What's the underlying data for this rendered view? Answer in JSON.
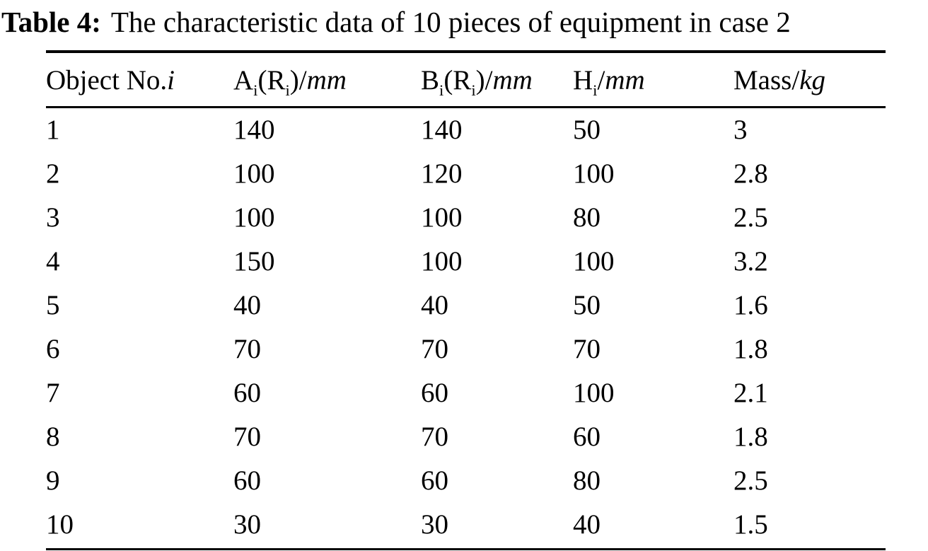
{
  "caption": {
    "label": "Table 4:",
    "text": "The characteristic data of 10 pieces of equipment in case 2"
  },
  "table": {
    "headers": [
      {
        "name": "object-no",
        "segments": [
          {
            "t": "Object No."
          },
          {
            "t": "i",
            "style": "italic"
          }
        ]
      },
      {
        "name": "a-dimension",
        "segments": [
          {
            "t": "A"
          },
          {
            "t": "i",
            "style": "sub"
          },
          {
            "t": "(R"
          },
          {
            "t": "i",
            "style": "sub"
          },
          {
            "t": ")/"
          },
          {
            "t": "mm",
            "style": "italic"
          }
        ]
      },
      {
        "name": "b-dimension",
        "segments": [
          {
            "t": "B"
          },
          {
            "t": "i",
            "style": "sub"
          },
          {
            "t": "(R"
          },
          {
            "t": "i",
            "style": "sub"
          },
          {
            "t": ")/"
          },
          {
            "t": "mm",
            "style": "italic"
          }
        ]
      },
      {
        "name": "height",
        "segments": [
          {
            "t": "H"
          },
          {
            "t": "i",
            "style": "sub"
          },
          {
            "t": "/"
          },
          {
            "t": "mm",
            "style": "italic"
          }
        ]
      },
      {
        "name": "mass",
        "segments": [
          {
            "t": "Mass/"
          },
          {
            "t": "kg",
            "style": "italic"
          }
        ]
      }
    ],
    "rows": [
      [
        "1",
        "140",
        "140",
        "50",
        "3"
      ],
      [
        "2",
        "100",
        "120",
        "100",
        "2.8"
      ],
      [
        "3",
        "100",
        "100",
        "80",
        "2.5"
      ],
      [
        "4",
        "150",
        "100",
        "100",
        "3.2"
      ],
      [
        "5",
        "40",
        "40",
        "50",
        "1.6"
      ],
      [
        "6",
        "70",
        "70",
        "70",
        "1.8"
      ],
      [
        "7",
        "60",
        "60",
        "100",
        "2.1"
      ],
      [
        "8",
        "70",
        "70",
        "60",
        "1.8"
      ],
      [
        "9",
        "60",
        "60",
        "80",
        "2.5"
      ],
      [
        "10",
        "30",
        "30",
        "40",
        "1.5"
      ]
    ]
  },
  "chart_data": {
    "type": "table",
    "title": "Table 4: The characteristic data of 10 pieces of equipment in case 2",
    "columns": [
      "Object No.i",
      "Ai(Ri)/mm",
      "Bi(Ri)/mm",
      "Hi/mm",
      "Mass/kg"
    ],
    "rows": [
      [
        1,
        140,
        140,
        50,
        3
      ],
      [
        2,
        100,
        120,
        100,
        2.8
      ],
      [
        3,
        100,
        100,
        80,
        2.5
      ],
      [
        4,
        150,
        100,
        100,
        3.2
      ],
      [
        5,
        40,
        40,
        50,
        1.6
      ],
      [
        6,
        70,
        70,
        70,
        1.8
      ],
      [
        7,
        60,
        60,
        100,
        2.1
      ],
      [
        8,
        70,
        70,
        60,
        1.8
      ],
      [
        9,
        60,
        60,
        80,
        2.5
      ],
      [
        10,
        30,
        30,
        40,
        1.5
      ]
    ]
  }
}
